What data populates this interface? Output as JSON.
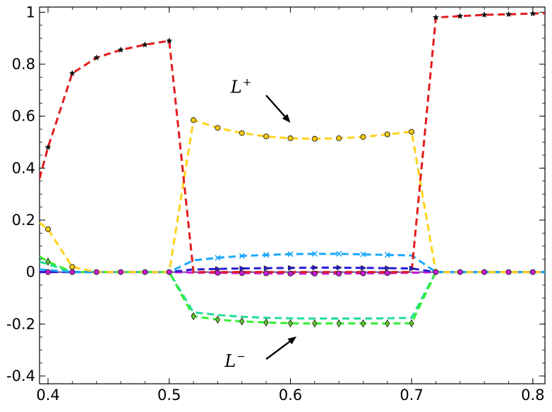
{
  "chart_data": {
    "type": "line",
    "title": "",
    "xlabel": "",
    "ylabel": "",
    "xlim": [
      0.393,
      0.81
    ],
    "ylim": [
      -0.43,
      1.02
    ],
    "grid": false,
    "legend": "none",
    "x_ticks": [
      0.4,
      0.5,
      0.6,
      0.7,
      0.8
    ],
    "x_tick_labels": [
      "0.4",
      "0.5",
      "0.6",
      "0.7",
      "0.8"
    ],
    "y_ticks": [
      1,
      0.8,
      0.6,
      0.4,
      0.2,
      0,
      -0.2,
      -0.4
    ],
    "y_tick_labels": [
      "1",
      "0.8",
      "0.6",
      "0.4",
      "0.2",
      "0",
      "-0.2",
      "-0.4"
    ],
    "baseline_color": "#4b2f8f",
    "series": [
      {
        "color": "#e31a1c",
        "marker": "star",
        "marker_face": "#111111",
        "x": [
          0.393,
          0.4,
          0.42,
          0.44,
          0.46,
          0.48,
          0.5,
          0.52,
          0.54,
          0.56,
          0.58,
          0.6,
          0.62,
          0.64,
          0.66,
          0.68,
          0.7,
          0.72,
          0.74,
          0.76,
          0.78,
          0.8,
          0.81
        ],
        "y": [
          0.36,
          0.48,
          0.765,
          0.825,
          0.855,
          0.875,
          0.89,
          0.0,
          0.0,
          0.0,
          0.0,
          0.0,
          0.0,
          0.0,
          0.0,
          0.0,
          0.0,
          0.98,
          0.985,
          0.99,
          0.992,
          0.995,
          0.996
        ],
        "markers_at": [
          0.4,
          0.42,
          0.44,
          0.46,
          0.48,
          0.5,
          0.72,
          0.74,
          0.76,
          0.78,
          0.8
        ]
      },
      {
        "color": "#ffd21a",
        "marker": "circle",
        "marker_face": "#f2c811",
        "x": [
          0.393,
          0.4,
          0.42,
          0.44,
          0.46,
          0.48,
          0.5,
          0.52,
          0.54,
          0.56,
          0.58,
          0.6,
          0.62,
          0.64,
          0.66,
          0.68,
          0.7,
          0.72,
          0.74,
          0.76,
          0.78,
          0.8,
          0.81
        ],
        "y": [
          0.19,
          0.165,
          0.02,
          0.0,
          0.0,
          0.0,
          0.0,
          0.585,
          0.555,
          0.535,
          0.522,
          0.515,
          0.513,
          0.515,
          0.52,
          0.53,
          0.54,
          0.0,
          0.0,
          0.0,
          0.0,
          0.0,
          0.0
        ],
        "markers_at": [
          0.4,
          0.42,
          0.52,
          0.54,
          0.56,
          0.58,
          0.6,
          0.62,
          0.64,
          0.66,
          0.68,
          0.7
        ]
      },
      {
        "color": "#1aa6ff",
        "marker": "x",
        "marker_face": "#1aa6ff",
        "x": [
          0.393,
          0.4,
          0.42,
          0.44,
          0.46,
          0.48,
          0.5,
          0.52,
          0.54,
          0.56,
          0.58,
          0.6,
          0.62,
          0.64,
          0.66,
          0.68,
          0.7,
          0.72,
          0.74,
          0.76,
          0.78,
          0.8,
          0.81
        ],
        "y": [
          0.01,
          0.008,
          0.0,
          0.0,
          0.0,
          0.0,
          0.0,
          0.045,
          0.055,
          0.062,
          0.066,
          0.069,
          0.07,
          0.07,
          0.068,
          0.066,
          0.064,
          0.0,
          0.0,
          0.0,
          0.0,
          0.0,
          0.0
        ],
        "markers_at": [
          0.54,
          0.56,
          0.58,
          0.6,
          0.62,
          0.64,
          0.66,
          0.68
        ]
      },
      {
        "color": "#2b1ad6",
        "marker": "triangle",
        "marker_face": "#2b1ad6",
        "x": [
          0.393,
          0.4,
          0.42,
          0.44,
          0.46,
          0.48,
          0.5,
          0.52,
          0.54,
          0.56,
          0.58,
          0.6,
          0.62,
          0.64,
          0.66,
          0.68,
          0.7,
          0.72,
          0.74,
          0.76,
          0.78,
          0.8,
          0.81
        ],
        "y": [
          0.0,
          0.0,
          0.0,
          0.0,
          0.0,
          0.0,
          0.0,
          0.01,
          0.012,
          0.014,
          0.015,
          0.016,
          0.017,
          0.017,
          0.016,
          0.015,
          0.014,
          0.0,
          0.0,
          0.0,
          0.0,
          0.0,
          0.0
        ],
        "markers_at": [
          0.54,
          0.56,
          0.58,
          0.6,
          0.62,
          0.64,
          0.66,
          0.68,
          0.7
        ]
      },
      {
        "color": "#c81ad6",
        "marker": "circle",
        "marker_face": "#c81ad6",
        "x": [
          0.393,
          0.4,
          0.42,
          0.44,
          0.46,
          0.48,
          0.5,
          0.52,
          0.54,
          0.56,
          0.58,
          0.6,
          0.62,
          0.64,
          0.66,
          0.68,
          0.7,
          0.72,
          0.74,
          0.76,
          0.78,
          0.8,
          0.81
        ],
        "y": [
          0.0,
          0.0,
          0.0,
          0.0,
          0.0,
          0.0,
          0.0,
          -0.002,
          -0.003,
          -0.004,
          -0.005,
          -0.006,
          -0.006,
          -0.006,
          -0.005,
          -0.004,
          -0.003,
          0.0,
          0.0,
          0.0,
          0.0,
          0.0,
          0.0
        ],
        "markers_at": [
          0.4,
          0.42,
          0.44,
          0.46,
          0.48,
          0.5,
          0.54,
          0.56,
          0.58,
          0.6,
          0.62,
          0.64,
          0.66,
          0.68,
          0.72,
          0.74,
          0.76,
          0.78,
          0.8
        ]
      },
      {
        "color": "#33ee33",
        "marker": "diamond",
        "marker_face": "#5fcf2a",
        "x": [
          0.393,
          0.4,
          0.42,
          0.44,
          0.46,
          0.48,
          0.5,
          0.52,
          0.54,
          0.56,
          0.58,
          0.6,
          0.62,
          0.64,
          0.66,
          0.68,
          0.7,
          0.72,
          0.74,
          0.76,
          0.78,
          0.8,
          0.81
        ],
        "y": [
          0.06,
          0.04,
          0.0,
          0.0,
          0.0,
          0.0,
          0.0,
          -0.17,
          -0.183,
          -0.19,
          -0.194,
          -0.197,
          -0.198,
          -0.198,
          -0.198,
          -0.198,
          -0.197,
          0.0,
          0.0,
          0.0,
          0.0,
          0.0,
          0.0
        ],
        "markers_at": [
          0.4,
          0.52,
          0.54,
          0.56,
          0.58,
          0.6,
          0.62,
          0.64,
          0.66,
          0.68,
          0.7
        ]
      },
      {
        "color": "#22dd99",
        "marker": "none",
        "marker_face": "none",
        "x": [
          0.393,
          0.4,
          0.42,
          0.44,
          0.46,
          0.48,
          0.5,
          0.52,
          0.54,
          0.56,
          0.58,
          0.6,
          0.62,
          0.64,
          0.66,
          0.68,
          0.7,
          0.72,
          0.74,
          0.76,
          0.78,
          0.8,
          0.81
        ],
        "y": [
          0.04,
          0.03,
          0.0,
          0.0,
          0.0,
          0.0,
          0.0,
          -0.155,
          -0.165,
          -0.172,
          -0.176,
          -0.178,
          -0.179,
          -0.179,
          -0.179,
          -0.178,
          -0.176,
          0.0,
          0.0,
          0.0,
          0.0,
          0.0,
          0.0
        ],
        "markers_at": []
      }
    ],
    "annotations": [
      {
        "base": "L",
        "sup": "+",
        "text_at": [
          0.56,
          0.69
        ],
        "arrow_from": [
          0.58,
          0.68
        ],
        "arrow_to": [
          0.6,
          0.575
        ]
      },
      {
        "base": "L",
        "sup": "−",
        "text_at": [
          0.555,
          -0.365
        ],
        "arrow_from": [
          0.58,
          -0.335
        ],
        "arrow_to": [
          0.605,
          -0.248
        ]
      }
    ]
  }
}
